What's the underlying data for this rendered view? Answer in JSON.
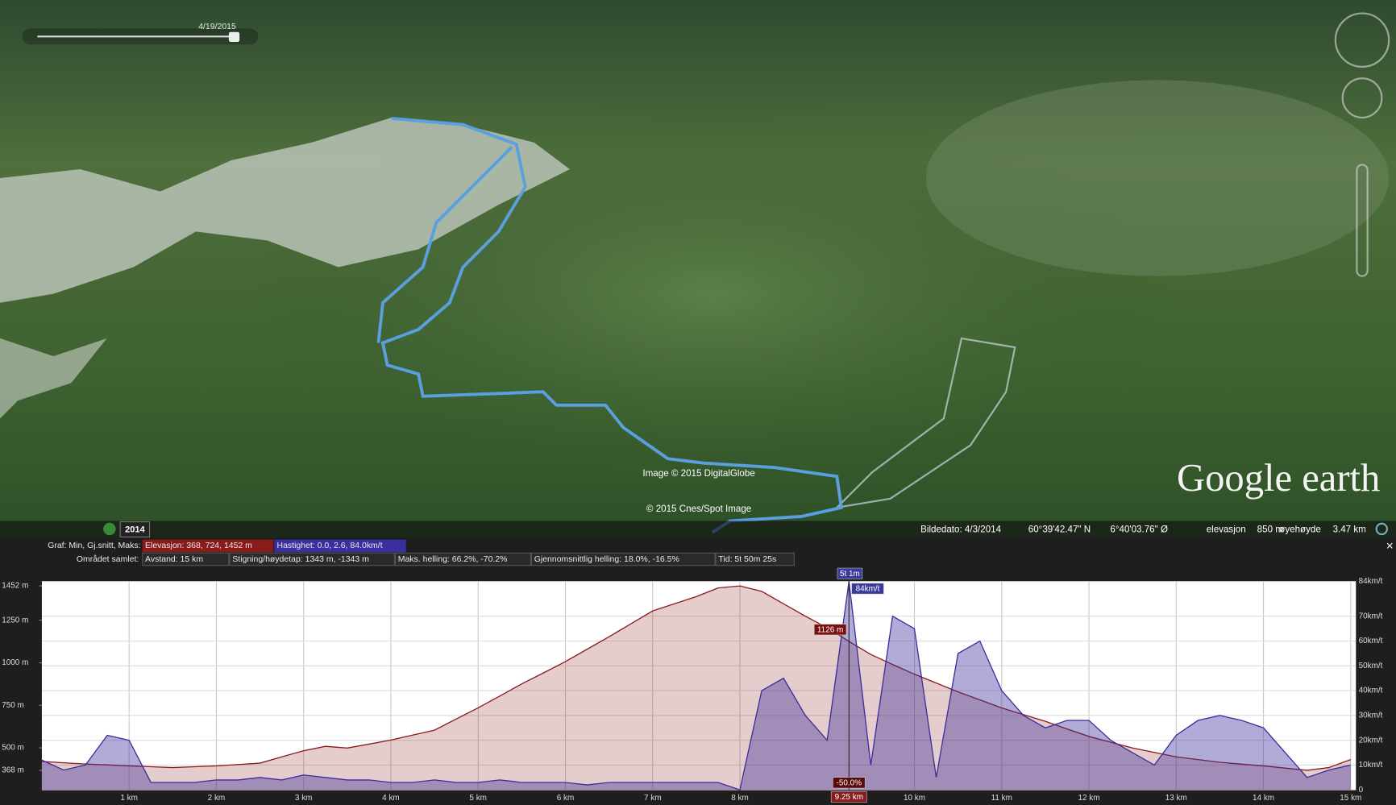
{
  "timeline": {
    "date": "4/19/2015"
  },
  "map": {
    "attribution": [
      "Image © 2015 DigitalGlobe",
      "© 2015 Cnes/Spot Image"
    ],
    "logo": "Google earth",
    "history_year": "2014"
  },
  "status": {
    "image_date": "Bildedato: 4/3/2014",
    "latitude": "60°39'42.47\" N",
    "longitude": "6°40'03.76\" Ø",
    "elevation_label": "elevasjon",
    "elevation": "850 m",
    "eye_label": "øyehøyde",
    "eye": "3.47 km"
  },
  "profile": {
    "close": "×",
    "row1_label": "Graf: Min, Gj.snitt, Maks:",
    "elevation_summary": "Elevasjon: 368, 724, 1452 m",
    "speed_summary": "Hastighet: 0.0, 2.6, 84.0km/t",
    "row2_label": "Området samlet:",
    "distance": "Avstand: 15 km",
    "climb": "Stigning/høydetap: 1343 m, -1343 m",
    "max_slope": "Maks. helling: 66.2%, -70.2%",
    "avg_slope": "Gjennomsnittlig helling: 18.0%, -16.5%",
    "time": "Tid: 5t 50m 25s"
  },
  "chart_data": {
    "type": "area",
    "x": [
      0,
      0.25,
      0.5,
      0.75,
      1,
      1.25,
      1.5,
      1.75,
      2,
      2.25,
      2.5,
      2.75,
      3,
      3.25,
      3.5,
      3.75,
      4,
      4.25,
      4.5,
      4.75,
      5,
      5.25,
      5.5,
      5.75,
      6,
      6.25,
      6.5,
      6.75,
      7,
      7.25,
      7.5,
      7.75,
      8,
      8.25,
      8.5,
      8.75,
      9,
      9.25,
      9.5,
      9.75,
      10,
      10.25,
      10.5,
      10.75,
      11,
      11.25,
      11.5,
      11.75,
      12,
      12.25,
      12.5,
      12.75,
      13,
      13.25,
      13.5,
      13.75,
      14,
      14.25,
      14.5,
      14.75,
      15
    ],
    "xlim": [
      0,
      15.06
    ],
    "xticks": [
      {
        "value": 1,
        "label": "1 km"
      },
      {
        "value": 2,
        "label": "2 km"
      },
      {
        "value": 3,
        "label": "3 km"
      },
      {
        "value": 4,
        "label": "4 km"
      },
      {
        "value": 5,
        "label": "5 km"
      },
      {
        "value": 6,
        "label": "6 km"
      },
      {
        "value": 7,
        "label": "7 km"
      },
      {
        "value": 8,
        "label": "8 km"
      },
      {
        "value": 10,
        "label": "10 km"
      },
      {
        "value": 11,
        "label": "11 km"
      },
      {
        "value": 12,
        "label": "12 km"
      },
      {
        "value": 13,
        "label": "13 km"
      },
      {
        "value": 14,
        "label": "14 km"
      },
      {
        "value": 15,
        "label": "15 km"
      }
    ],
    "ylim": [
      253,
      1478
    ],
    "yticks": [
      {
        "value": 368,
        "label": "368 m"
      },
      {
        "value": 500,
        "label": "500 m"
      },
      {
        "value": 750,
        "label": "750 m"
      },
      {
        "value": 1000,
        "label": "1000 m"
      },
      {
        "value": 1250,
        "label": "1250 m"
      },
      {
        "value": 1452,
        "label": "1452 m"
      }
    ],
    "y2lim": [
      0,
      84
    ],
    "y2ticks": [
      0,
      {
        "value": 10,
        "label": "10km/t"
      },
      {
        "value": 20,
        "label": "20km/t"
      },
      {
        "value": 30,
        "label": "30km/t"
      },
      {
        "value": 40,
        "label": "40km/t"
      },
      {
        "value": 50,
        "label": "50km/t"
      },
      {
        "value": 60,
        "label": "60km/t"
      },
      {
        "value": 70,
        "label": "70km/t"
      },
      {
        "value": 84,
        "label": "84km/t"
      }
    ],
    "grid": true,
    "series": [
      {
        "color": "#8b1a1a",
        "values": [
          420,
          412,
          405,
          400,
          394,
          389,
          384,
          389,
          394,
          402,
          410,
          447,
          483,
          509,
          499,
          522,
          546,
          575,
          604,
          670,
          735,
          805,
          876,
          941,
          1007,
          1080,
          1153,
          1229,
          1305,
          1347,
          1389,
          1440,
          1452,
          1420,
          1347,
          1274,
          1206,
          1126,
          1049,
          990,
          933,
          881,
          829,
          782,
          735,
          695,
          656,
          611,
          567,
          533,
          499,
          473,
          447,
          431,
          415,
          404,
          394,
          381,
          368,
          384,
          431
        ]
      },
      {
        "color": "#3c2d9b",
        "axis": "y2",
        "values": [
          12,
          8,
          10,
          22,
          20,
          3,
          3,
          3,
          4,
          4,
          5,
          4,
          6,
          5,
          4,
          4,
          3,
          3,
          4,
          3,
          3,
          4,
          3,
          3,
          3,
          2,
          3,
          3,
          3,
          3,
          3,
          3,
          0,
          40,
          45,
          30,
          20,
          84,
          10,
          70,
          65,
          5,
          55,
          60,
          40,
          30,
          25,
          28,
          28,
          20,
          15,
          10,
          22,
          28,
          30,
          28,
          25,
          15,
          5,
          8,
          10
        ]
      }
    ],
    "cursor": {
      "x": 9.25,
      "x_label": "9.25 km",
      "time": "5t 1m",
      "speed_label": "84km/t",
      "elevation_label": "1126 m",
      "slope": "-50.0%"
    }
  }
}
